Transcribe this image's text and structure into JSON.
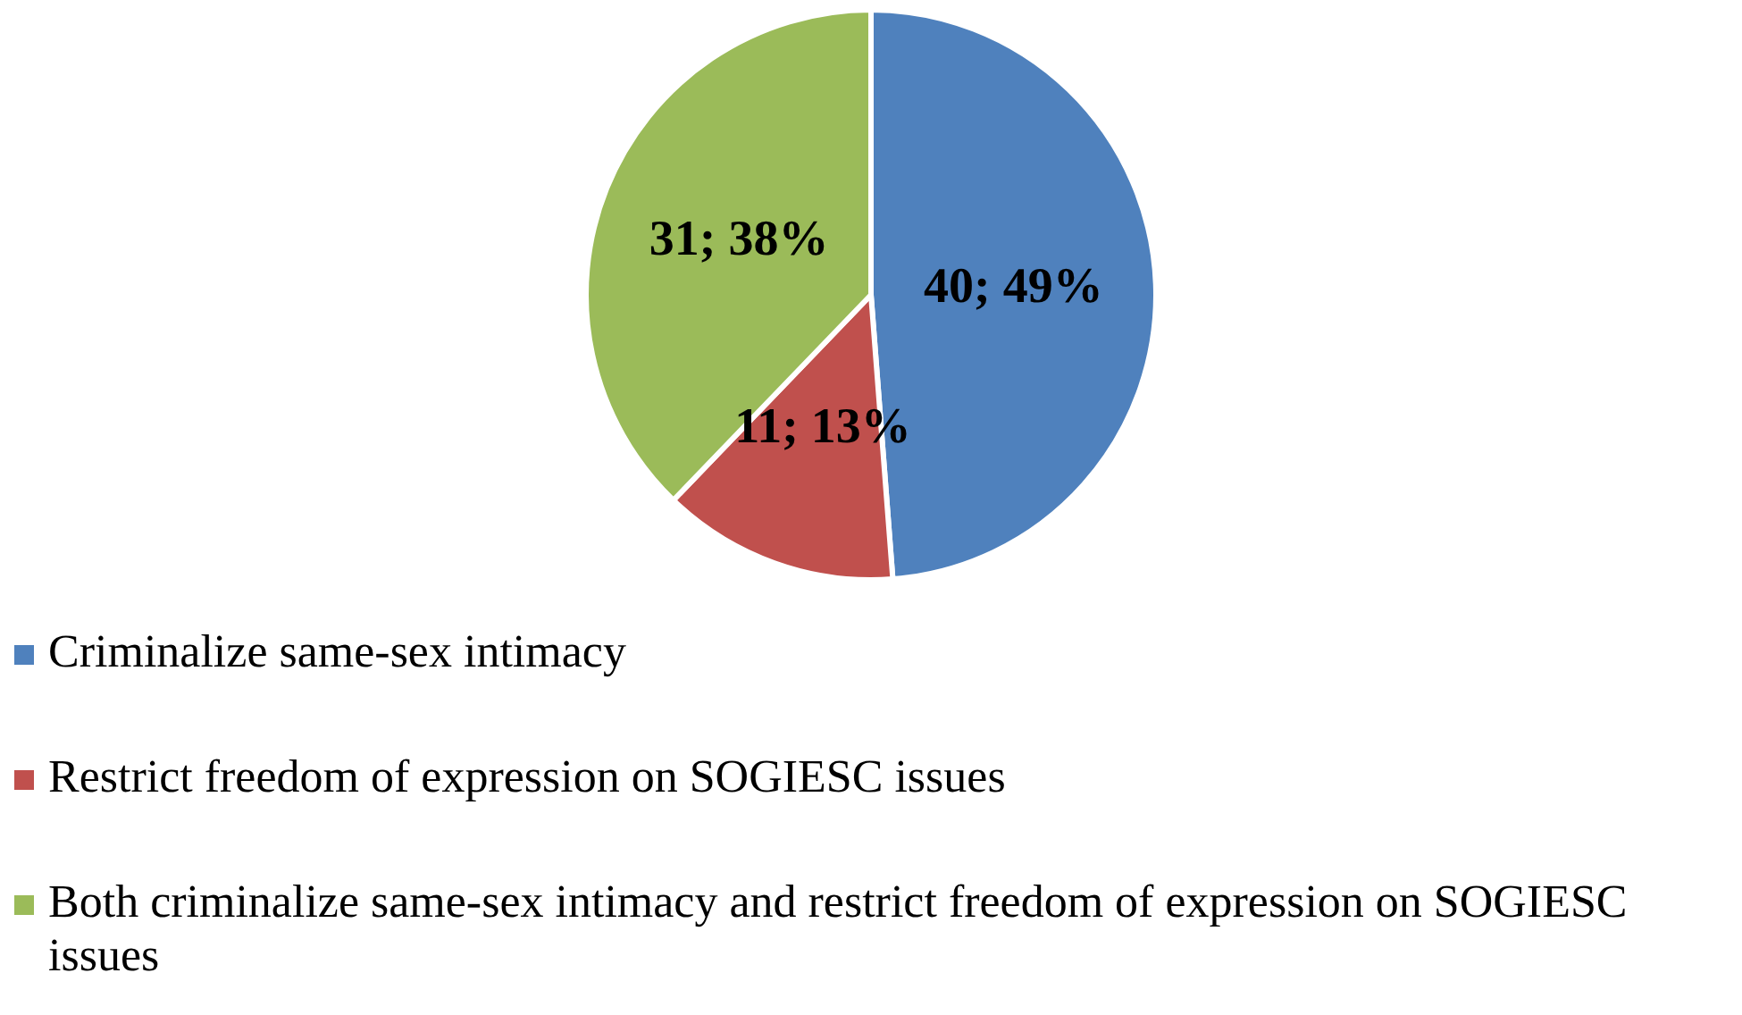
{
  "chart_data": {
    "type": "pie",
    "categories": [
      "Criminalize same-sex intimacy",
      "Restrict freedom of expression on SOGIESC issues",
      "Both criminalize same-sex intimacy and restrict freedom of expression on SOGIESC issues"
    ],
    "values": [
      40,
      11,
      31
    ],
    "colors": [
      "#4f81bd",
      "#c0504d",
      "#9bbb59"
    ],
    "value_labels": [
      "40; 49%",
      "11; 13%",
      "31; 38%"
    ],
    "legend": "bottom"
  }
}
